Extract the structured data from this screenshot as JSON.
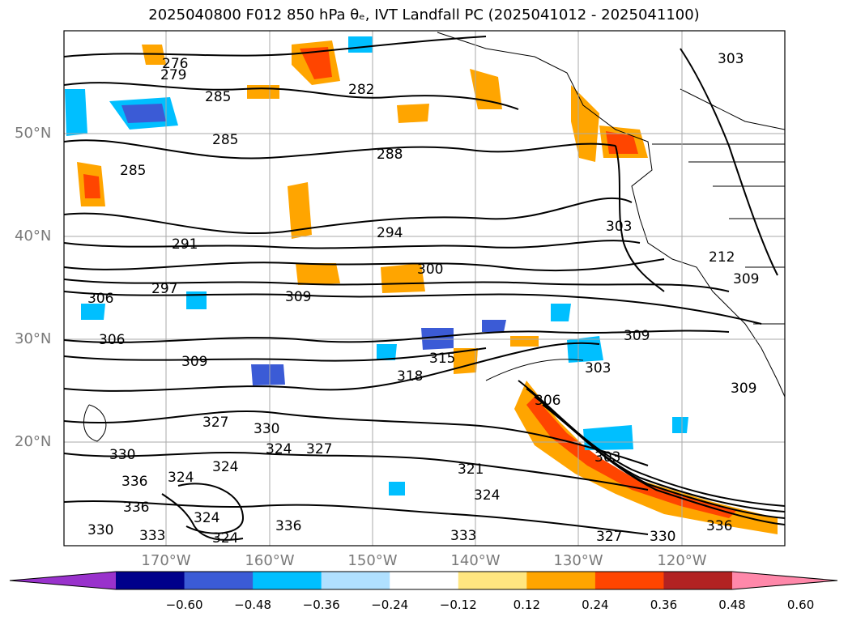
{
  "title": "2025040800 F012 850 hPa θₑ, IVT Landfall PC (2025041012 - 2025041100)",
  "lat_labels": [
    "50°N",
    "40°N",
    "30°N",
    "20°N"
  ],
  "lon_labels": [
    "170°W",
    "160°W",
    "150°W",
    "140°W",
    "130°W",
    "120°W"
  ],
  "contour_labels": [
    "276",
    "279",
    "285",
    "282",
    "285",
    "303",
    "285",
    "288",
    "291",
    "294",
    "303",
    "212",
    "297",
    "306",
    "300",
    "309",
    "309",
    "306",
    "309",
    "309",
    "315",
    "318",
    "303",
    "306",
    "327",
    "330",
    "324",
    "327",
    "330",
    "324",
    "324",
    "336",
    "324",
    "321",
    "303",
    "324",
    "330",
    "336",
    "333",
    "324",
    "333",
    "327",
    "330",
    "336",
    "336",
    "309"
  ],
  "colorbar": {
    "ticks": [
      "−0.60",
      "−0.48",
      "−0.36",
      "−0.24",
      "−0.12",
      "0.12",
      "0.24",
      "0.36",
      "0.48",
      "0.60"
    ],
    "colors": [
      "#9932cc",
      "#00008b",
      "#3b5bd6",
      "#00bfff",
      "#b0e0ff",
      "#ffffff",
      "#ffe680",
      "#ffa500",
      "#ff4500",
      "#b22222",
      "#ff88aa"
    ]
  }
}
